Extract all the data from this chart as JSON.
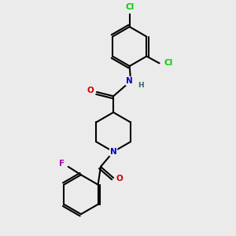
{
  "bg_color": "#ebebeb",
  "bond_color": "#000000",
  "atom_colors": {
    "C": "#000000",
    "N": "#0000cc",
    "O": "#cc0000",
    "Cl": "#00cc00",
    "F": "#aa00aa",
    "H": "#336666"
  }
}
